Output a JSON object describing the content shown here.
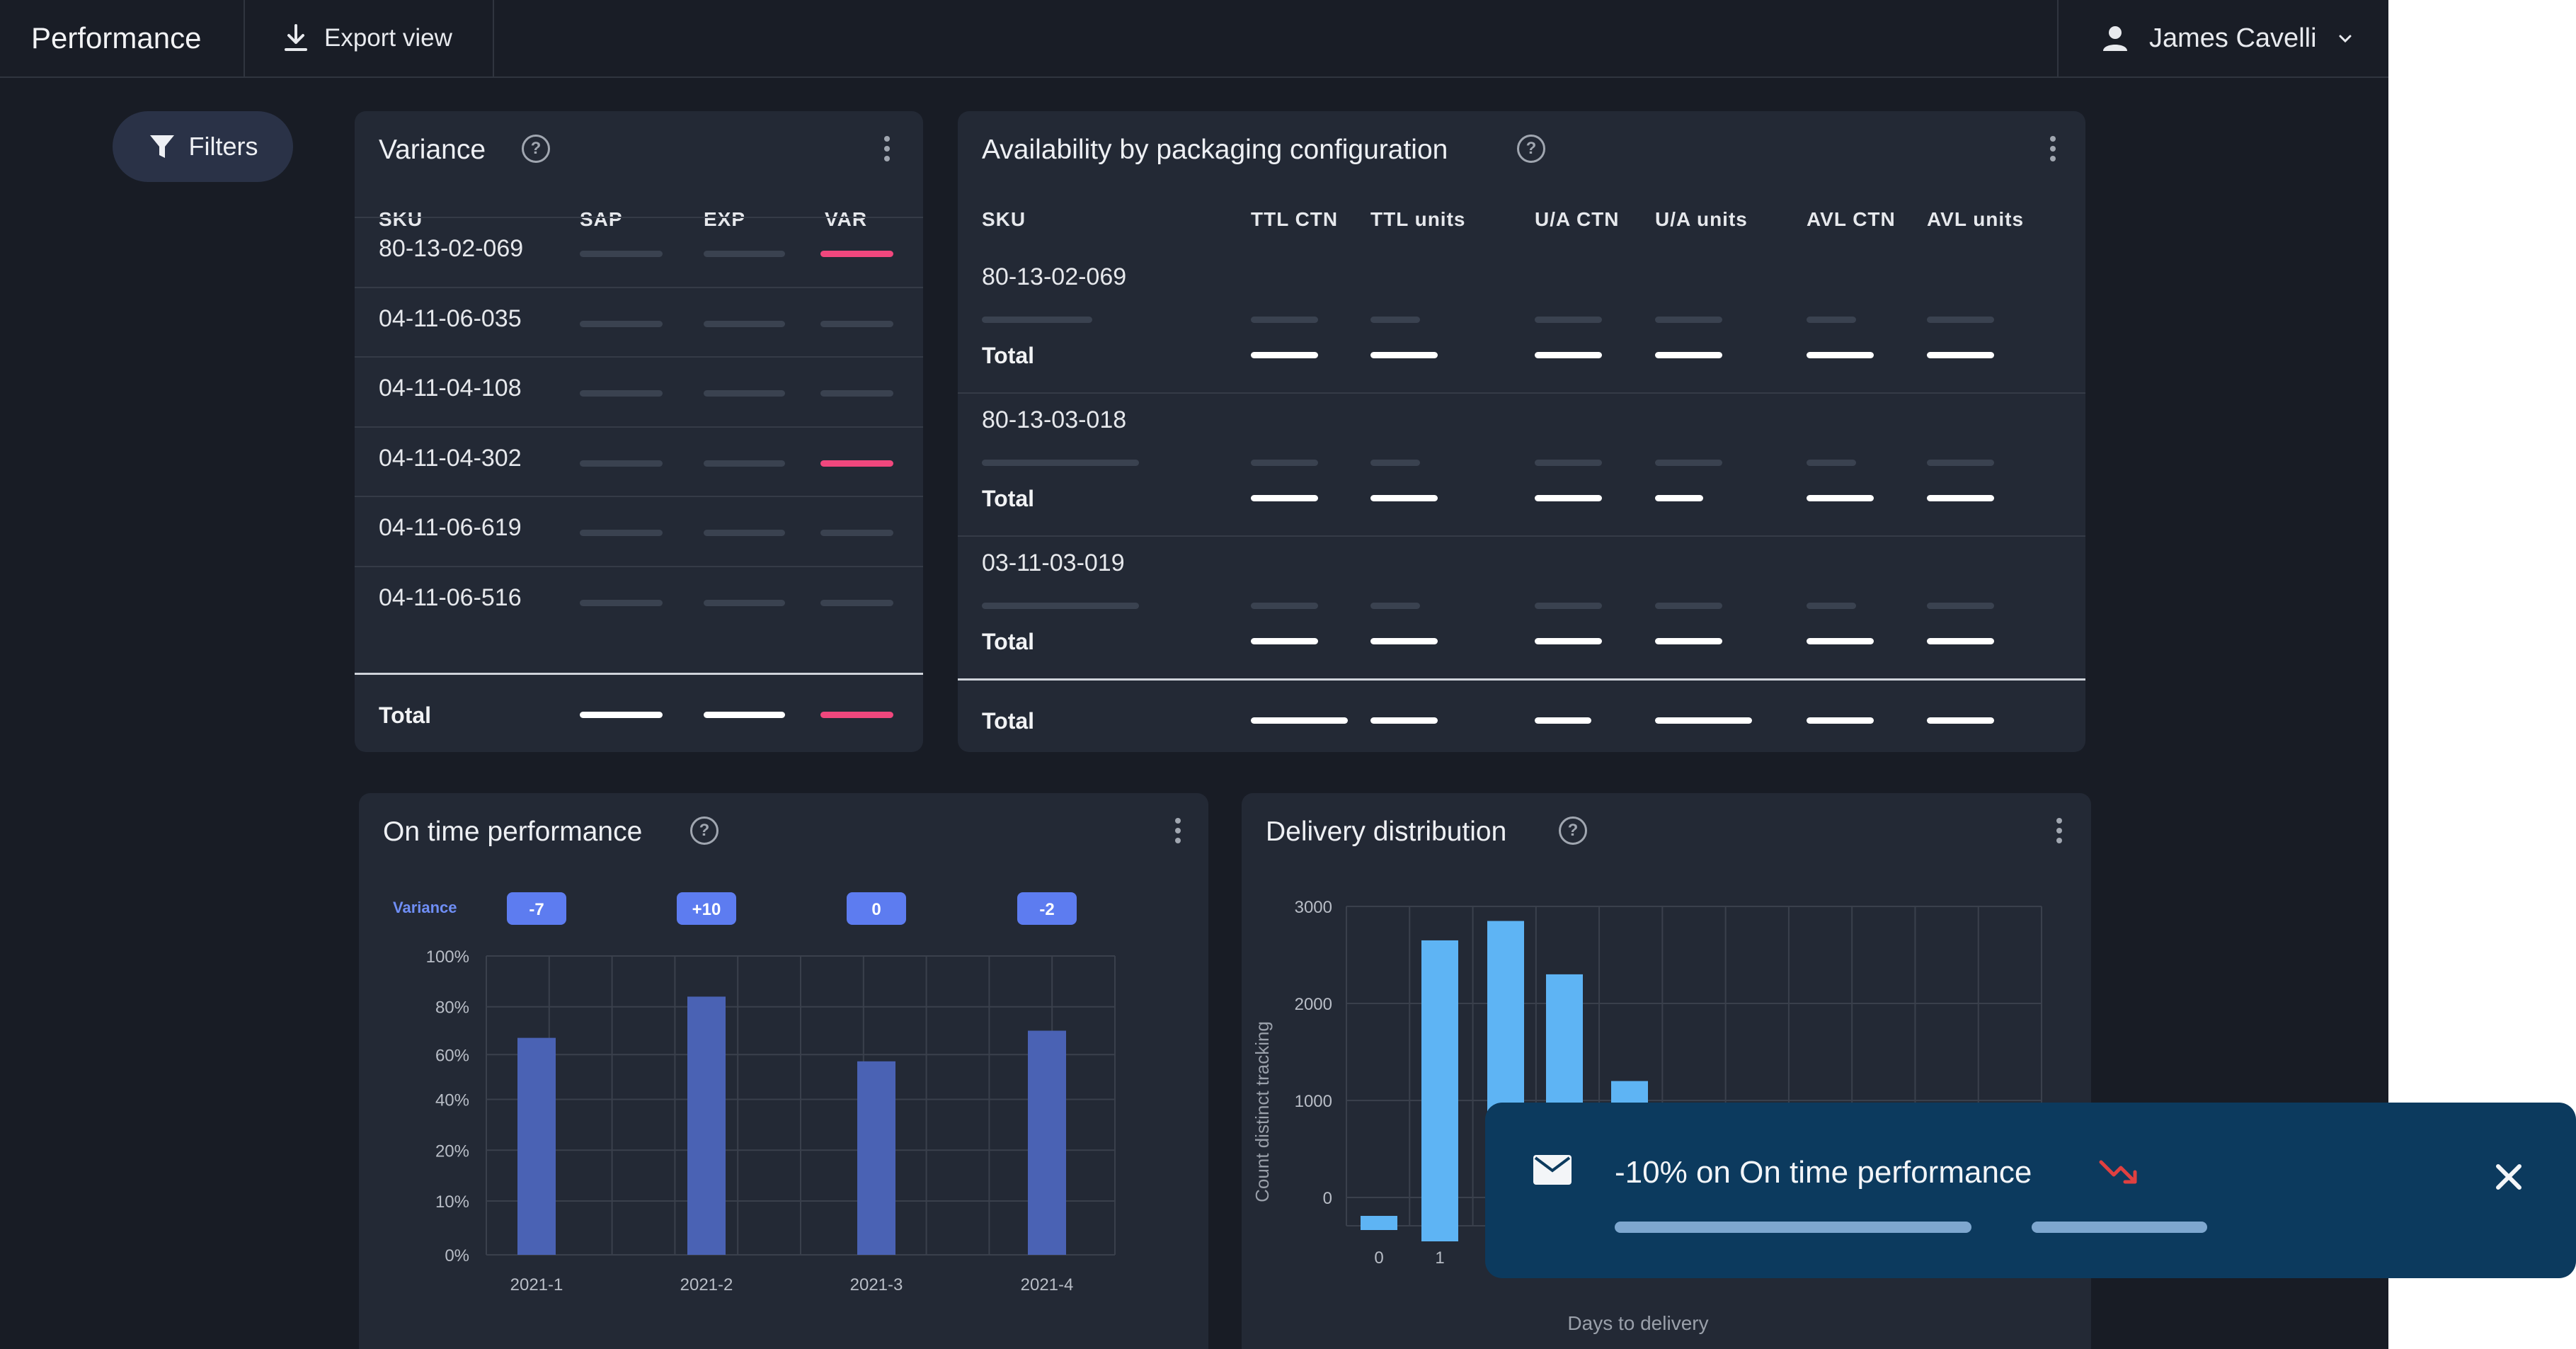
{
  "header": {
    "title": "Performance",
    "export_label": "Export view",
    "user_name": "James Cavelli"
  },
  "filters_label": "Filters",
  "variance": {
    "title": "Variance",
    "columns": [
      "SKU",
      "SAP",
      "EXP",
      "VAR"
    ],
    "rows": [
      {
        "sku": "80-13-02-069",
        "var_flag": "pink"
      },
      {
        "sku": "04-11-06-035",
        "var_flag": "dim"
      },
      {
        "sku": "04-11-04-108",
        "var_flag": "dim"
      },
      {
        "sku": "04-11-04-302",
        "var_flag": "pink"
      },
      {
        "sku": "04-11-06-619",
        "var_flag": "dim"
      },
      {
        "sku": "04-11-06-516",
        "var_flag": "dim"
      }
    ],
    "total_label": "Total"
  },
  "availability": {
    "title": "Availability by packaging configuration",
    "columns": [
      "SKU",
      "TTL CTN",
      "TTL units",
      "U/A CTN",
      "U/A units",
      "AVL CTN",
      "AVL units"
    ],
    "groups": [
      {
        "sku": "80-13-02-069",
        "total_label": "Total"
      },
      {
        "sku": "80-13-03-018",
        "total_label": "Total"
      },
      {
        "sku": "03-11-03-019",
        "total_label": "Total"
      }
    ],
    "grand_total_label": "Total"
  },
  "on_time": {
    "title": "On time performance",
    "variance_label": "Variance",
    "variance_badges": [
      "-7",
      "+10",
      "0",
      "-2"
    ]
  },
  "delivery": {
    "title": "Delivery distribution"
  },
  "notification": {
    "message": "-10% on On time performance"
  },
  "colors": {
    "background": "#181c25",
    "card": "#232935",
    "accent_pink": "#f0477d",
    "ontime_bar": "#4a62b4",
    "delivery_bar": "#5eb4f4",
    "badge": "#5d7cf0",
    "toast": "#0c3a5e",
    "trend_down": "#e04040"
  },
  "icons": [
    "download-icon",
    "user-icon",
    "chevron-down-icon",
    "filter-icon",
    "help-icon",
    "kebab-icon",
    "mail-icon",
    "trend-down-icon",
    "close-icon"
  ],
  "chart_data": [
    {
      "type": "bar",
      "title": "On time performance",
      "categories": [
        "2021-1",
        "2021-2",
        "2021-3",
        "2021-4"
      ],
      "values": [
        67,
        84,
        57,
        70
      ],
      "unit": "%",
      "ytick_labels": [
        "0%",
        "10%",
        "20%",
        "40%",
        "60%",
        "80%",
        "100%"
      ],
      "ylim": [
        0,
        100
      ],
      "annotations": [
        "-7",
        "+10",
        "0",
        "-2"
      ],
      "annotation_label": "Variance",
      "grid": true,
      "color": "#4a62b4"
    },
    {
      "type": "bar",
      "title": "Delivery distribution",
      "xlabel": "Days to delivery",
      "ylabel": "Count distinct tracking",
      "x": [
        0,
        1,
        2,
        3,
        4
      ],
      "xtick_labels": [
        "0",
        "1"
      ],
      "values": [
        -160,
        2650,
        2850,
        2300,
        1200
      ],
      "yticks": [
        0,
        1000,
        2000,
        3000
      ],
      "ylim": [
        -400,
        3000
      ],
      "grid": true,
      "color": "#5eb4f4"
    }
  ]
}
